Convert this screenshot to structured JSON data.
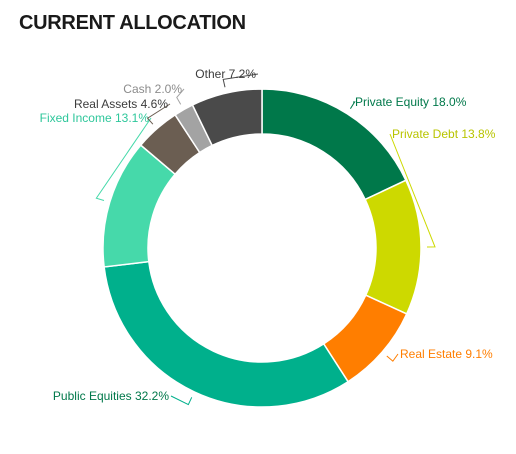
{
  "title": "CURRENT ALLOCATION",
  "chart_data": {
    "type": "pie",
    "variant": "donut",
    "title": "CURRENT ALLOCATION",
    "slices": [
      {
        "name": "Private Equity",
        "value": 18.0,
        "label": "Private Equity 18.0%",
        "color": "#00784a",
        "text_color": "#00784a"
      },
      {
        "name": "Private Debt",
        "value": 13.8,
        "label": "Private Debt 13.8%",
        "color": "#cdd900",
        "text_color": "#b8c400"
      },
      {
        "name": "Real Estate",
        "value": 9.1,
        "label": "Real Estate 9.1%",
        "color": "#ff7e00",
        "text_color": "#ff7e00"
      },
      {
        "name": "Public Equities",
        "value": 32.2,
        "label": "Public Equities 32.2%",
        "color": "#00b08c",
        "text_color": "#00784a"
      },
      {
        "name": "Fixed Income",
        "value": 13.1,
        "label": "Fixed Income 13.1%",
        "color": "#46d9aa",
        "text_color": "#2ec79b"
      },
      {
        "name": "Real Assets",
        "value": 4.6,
        "label": "Real Assets 4.6%",
        "color": "#6b5e52",
        "text_color": "#3c3c3c"
      },
      {
        "name": "Cash",
        "value": 2.0,
        "label": "Cash 2.0%",
        "color": "#a3a3a3",
        "text_color": "#8c8c8c"
      },
      {
        "name": "Other",
        "value": 7.2,
        "label": "Other 7.2%",
        "color": "#4a4a4a",
        "text_color": "#3c3c3c"
      }
    ],
    "legend": "none"
  }
}
